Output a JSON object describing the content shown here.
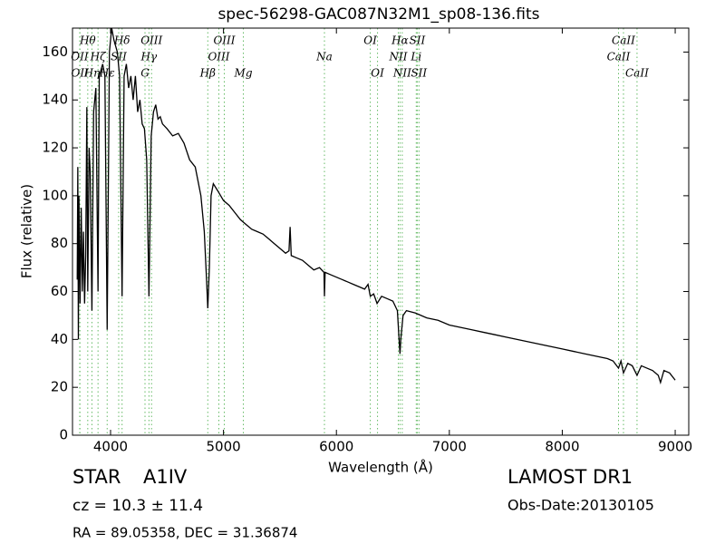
{
  "chart_data": {
    "type": "line",
    "title": "spec-56298-GAC087N32M1_sp08-136.fits",
    "x_label": "Wavelength (Å)",
    "y_label": "Flux (relative)",
    "color": "#000000",
    "line_marker_color": "#66bb66",
    "xlim": [
      3663,
      9120
    ],
    "ylim": [
      0,
      170
    ],
    "xticks": [
      4000,
      5000,
      6000,
      7000,
      8000,
      9000
    ],
    "yticks": [
      0,
      20,
      40,
      60,
      80,
      100,
      120,
      140,
      160
    ],
    "x": [
      3705,
      3710,
      3715,
      3720,
      3730,
      3740,
      3750,
      3760,
      3770,
      3780,
      3790,
      3798,
      3810,
      3820,
      3835,
      3850,
      3870,
      3889,
      3900,
      3930,
      3950,
      3970,
      3990,
      4010,
      4030,
      4060,
      4080,
      4102,
      4120,
      4140,
      4160,
      4180,
      4200,
      4220,
      4240,
      4260,
      4280,
      4300,
      4320,
      4340,
      4360,
      4380,
      4400,
      4420,
      4440,
      4460,
      4500,
      4550,
      4600,
      4650,
      4700,
      4750,
      4800,
      4830,
      4850,
      4861,
      4875,
      4890,
      4910,
      4950,
      5000,
      5050,
      5100,
      5150,
      5200,
      5250,
      5300,
      5350,
      5400,
      5450,
      5500,
      5550,
      5580,
      5590,
      5600,
      5650,
      5700,
      5750,
      5800,
      5850,
      5890,
      5894,
      5900,
      5950,
      6000,
      6050,
      6100,
      6150,
      6200,
      6250,
      6280,
      6300,
      6330,
      6360,
      6400,
      6450,
      6500,
      6540,
      6555,
      6563,
      6570,
      6590,
      6620,
      6700,
      6800,
      6900,
      7000,
      7100,
      7200,
      7300,
      7400,
      7500,
      7600,
      7700,
      7800,
      7900,
      8000,
      8100,
      8200,
      8300,
      8400,
      8450,
      8498,
      8520,
      8542,
      8580,
      8620,
      8662,
      8700,
      8750,
      8800,
      8850,
      8870,
      8900,
      8950,
      9000
    ],
    "values": [
      65,
      112,
      40,
      100,
      55,
      95,
      60,
      85,
      55,
      75,
      137,
      60,
      120,
      110,
      52,
      135,
      145,
      60,
      150,
      155,
      150,
      44,
      160,
      170,
      165,
      160,
      150,
      58,
      150,
      155,
      145,
      150,
      140,
      150,
      135,
      140,
      130,
      128,
      115,
      58,
      125,
      135,
      138,
      132,
      133,
      130,
      128,
      125,
      126,
      122,
      115,
      112,
      100,
      85,
      65,
      53,
      70,
      100,
      105,
      102,
      98,
      96,
      93,
      90,
      88,
      86,
      85,
      84,
      82,
      80,
      78,
      76,
      77,
      87,
      75,
      74,
      73,
      71,
      69,
      70,
      68,
      58,
      68,
      67,
      66,
      65,
      64,
      63,
      62,
      61,
      63,
      58,
      59,
      55,
      58,
      57,
      56,
      52,
      40,
      34,
      40,
      50,
      52,
      51,
      49,
      48,
      46,
      45,
      44,
      43,
      42,
      41,
      40,
      39,
      38,
      37,
      36,
      35,
      34,
      33,
      32,
      31,
      28,
      31,
      26,
      30,
      29,
      25,
      29,
      28,
      27,
      25,
      22,
      27,
      26,
      23
    ],
    "lines": [
      {
        "wavelength": 3727,
        "label": "OII"
      },
      {
        "wavelength": 3729,
        "label": "OII"
      },
      {
        "wavelength": 3798,
        "label": "Hθ"
      },
      {
        "wavelength": 3835,
        "label": "Hη"
      },
      {
        "wavelength": 3889,
        "label": "Hζ"
      },
      {
        "wavelength": 3970,
        "label": "Hε"
      },
      {
        "wavelength": 4072,
        "label": "SII"
      },
      {
        "wavelength": 4102,
        "label": "Hδ"
      },
      {
        "wavelength": 4305,
        "label": "G"
      },
      {
        "wavelength": 4340,
        "label": "Hγ"
      },
      {
        "wavelength": 4363,
        "label": "OIII"
      },
      {
        "wavelength": 4861,
        "label": "Hβ"
      },
      {
        "wavelength": 4959,
        "label": "OIII"
      },
      {
        "wavelength": 5007,
        "label": "OIII"
      },
      {
        "wavelength": 5176,
        "label": "Mg"
      },
      {
        "wavelength": 5894,
        "label": "Na"
      },
      {
        "wavelength": 6300,
        "label": "OI"
      },
      {
        "wavelength": 6364,
        "label": "OI"
      },
      {
        "wavelength": 6548,
        "label": "NII"
      },
      {
        "wavelength": 6563,
        "label": "Hα"
      },
      {
        "wavelength": 6583,
        "label": "NII"
      },
      {
        "wavelength": 6707,
        "label": "Li"
      },
      {
        "wavelength": 6716,
        "label": "SII"
      },
      {
        "wavelength": 6731,
        "label": "SII"
      },
      {
        "wavelength": 8498,
        "label": "CaII"
      },
      {
        "wavelength": 8542,
        "label": "CaII"
      },
      {
        "wavelength": 8662,
        "label": "CaII"
      }
    ]
  },
  "info": {
    "object_class": "STAR",
    "subclass": "A1IV",
    "survey": "LAMOST DR1",
    "cz": "cz = 10.3 ± 11.4",
    "obs_date": "Obs-Date:20130105",
    "coords": "RA = 89.05358, DEC = 31.36874"
  }
}
